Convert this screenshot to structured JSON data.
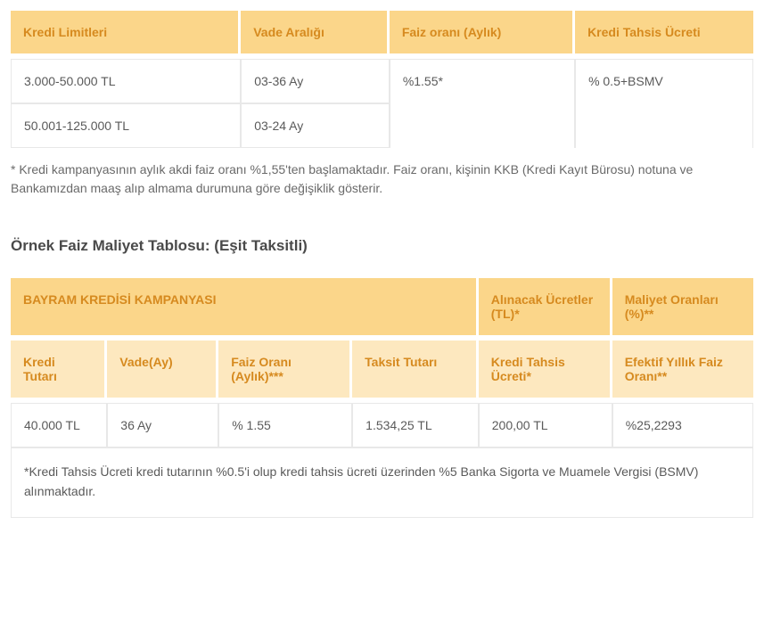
{
  "table1": {
    "headers": [
      "Kredi Limitleri",
      "Vade Aralığı",
      "Faiz oranı (Aylık)",
      "Kredi Tahsis Ücreti"
    ],
    "rows": [
      [
        "3.000-50.000 TL",
        "03-36 Ay",
        "%1.55*",
        "% 0.5+BSMV"
      ],
      [
        "50.001-125.000 TL",
        "03-24 Ay"
      ]
    ],
    "footnote": "* Kredi kampanyasının aylık akdi faiz oranı %1,55'ten başlamaktadır. Faiz oranı, kişinin KKB (Kredi Kayıt Bürosu) notuna ve Bankamızdan maaş alıp almama durumuna göre değişiklik gösterir."
  },
  "section_title": "Örnek Faiz Maliyet Tablosu: (Eşit Taksitli)",
  "table2": {
    "top_headers": [
      "BAYRAM KREDİSİ KAMPANYASI",
      "Alınacak Ücretler (TL)*",
      "Maliyet Oranları (%)**"
    ],
    "sub_headers": [
      "Kredi Tutarı",
      "Vade(Ay)",
      "Faiz Oranı (Aylık)***",
      "Taksit Tutarı",
      "Kredi Tahsis Ücreti*",
      "Efektif Yıllık Faiz Oranı**"
    ],
    "row": [
      "40.000 TL",
      "36 Ay",
      "% 1.55",
      "1.534,25 TL",
      "200,00 TL",
      "%25,2293"
    ],
    "note": "*Kredi Tahsis Ücreti kredi tutarının %0.5'i olup kredi tahsis ücreti üzerinden %5 Banka Sigorta ve Muamele Vergisi (BSMV) alınmaktadır."
  }
}
